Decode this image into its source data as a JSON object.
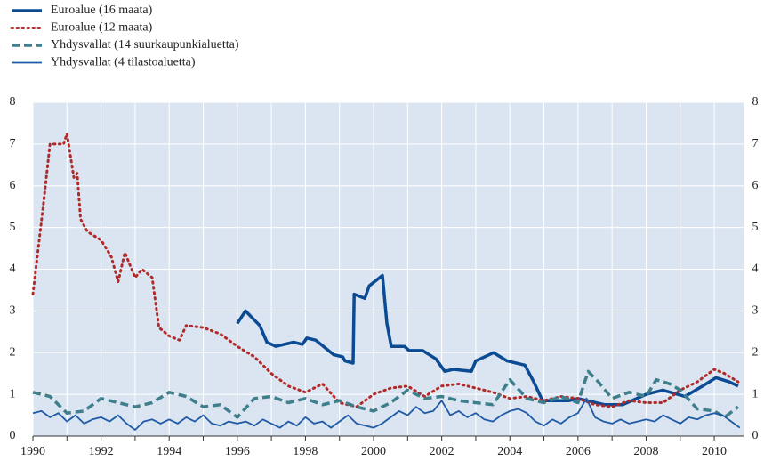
{
  "chart_data": {
    "type": "line",
    "xlim": [
      1990,
      2010.86
    ],
    "xticks": [
      1990,
      1992,
      1994,
      1996,
      1998,
      2000,
      2002,
      2004,
      2006,
      2008,
      2010
    ],
    "xminorticks": [
      1991,
      1993,
      1995,
      1997,
      1999,
      2001,
      2003,
      2005,
      2007,
      2009
    ],
    "ylim": [
      0,
      8
    ],
    "yticks": [
      0,
      1,
      2,
      3,
      4,
      5,
      6,
      7,
      8
    ],
    "y2lim": [
      0,
      8
    ],
    "y2ticks": [
      0,
      1,
      2,
      3,
      4,
      5,
      6,
      7,
      8
    ],
    "grid": true,
    "plot_background": "#dbe5f1",
    "grid_color": "#ffffff",
    "series": [
      {
        "name": "Euroalue (16 maata)",
        "color": "#0b4b93",
        "style": "solid",
        "width": 3.5,
        "x": [
          1996.0,
          1996.24,
          1996.66,
          1996.87,
          1997.13,
          1997.65,
          1997.91,
          1998.04,
          1998.3,
          1998.83,
          1999.09,
          1999.16,
          1999.4,
          1999.43,
          1999.74,
          1999.87,
          2000.26,
          2000.39,
          2000.52,
          2000.91,
          2001.04,
          2001.44,
          2001.83,
          2002.09,
          2002.35,
          2002.87,
          2003.0,
          2003.52,
          2003.92,
          2004.44,
          2004.7,
          2004.96,
          2005.74,
          2006.0,
          2006.79,
          2007.31,
          2008.0,
          2008.49,
          2009.14,
          2009.66,
          2010.05,
          2010.44,
          2010.7
        ],
        "values": [
          2.7,
          3.0,
          2.65,
          2.25,
          2.15,
          2.25,
          2.2,
          2.35,
          2.3,
          1.95,
          1.9,
          1.8,
          1.75,
          3.4,
          3.3,
          3.6,
          3.85,
          2.7,
          2.15,
          2.15,
          2.05,
          2.05,
          1.85,
          1.55,
          1.6,
          1.55,
          1.8,
          2.0,
          1.8,
          1.7,
          1.3,
          0.85,
          0.85,
          0.9,
          0.75,
          0.75,
          1.0,
          1.1,
          0.95,
          1.2,
          1.4,
          1.3,
          1.2
        ]
      },
      {
        "name": "Euroalue (12 maata)",
        "color": "#b02a2a",
        "style": "dotted",
        "width": 3,
        "x": [
          1990.0,
          1990.3,
          1990.5,
          1990.9,
          1991.0,
          1991.2,
          1991.3,
          1991.4,
          1991.6,
          1992.0,
          1992.3,
          1992.5,
          1992.7,
          1993.0,
          1993.2,
          1993.5,
          1993.7,
          1994.0,
          1994.3,
          1994.5,
          1995.0,
          1995.5,
          1996.0,
          1996.5,
          1997.0,
          1997.5,
          1998.0,
          1998.5,
          1999.0,
          1999.5,
          2000.0,
          2000.5,
          2001.0,
          2001.5,
          2002.0,
          2002.5,
          2003.0,
          2003.5,
          2004.0,
          2004.5,
          2005.0,
          2005.5,
          2006.0,
          2006.5,
          2007.0,
          2007.5,
          2008.0,
          2008.5,
          2009.0,
          2009.5,
          2010.0,
          2010.3,
          2010.7
        ],
        "values": [
          3.4,
          5.5,
          7.0,
          7.0,
          7.25,
          6.2,
          6.3,
          5.2,
          4.9,
          4.7,
          4.3,
          3.7,
          4.4,
          3.8,
          4.0,
          3.8,
          2.6,
          2.4,
          2.3,
          2.65,
          2.6,
          2.45,
          2.15,
          1.9,
          1.5,
          1.2,
          1.05,
          1.25,
          0.8,
          0.7,
          1.0,
          1.15,
          1.2,
          0.95,
          1.2,
          1.25,
          1.15,
          1.05,
          0.9,
          0.95,
          0.85,
          0.95,
          0.9,
          0.75,
          0.7,
          0.85,
          0.8,
          0.8,
          1.1,
          1.3,
          1.6,
          1.5,
          1.3
        ]
      },
      {
        "name": "Yhdysvallat (14 suurkaupunkialuetta)",
        "color": "#3f7f8c",
        "style": "dashed",
        "width": 3.5,
        "x": [
          1990.0,
          1990.5,
          1991.0,
          1991.5,
          1992.0,
          1992.5,
          1993.0,
          1993.5,
          1994.0,
          1994.5,
          1995.0,
          1995.5,
          1996.0,
          1996.5,
          1997.0,
          1997.5,
          1998.0,
          1998.5,
          1999.0,
          1999.5,
          2000.0,
          2000.5,
          2001.0,
          2001.5,
          2002.0,
          2002.5,
          2003.0,
          2003.5,
          2004.0,
          2004.5,
          2005.0,
          2005.5,
          2006.0,
          2006.3,
          2006.6,
          2007.0,
          2007.5,
          2008.0,
          2008.3,
          2008.7,
          2009.0,
          2009.5,
          2010.0,
          2010.3,
          2010.7
        ],
        "values": [
          1.05,
          0.95,
          0.55,
          0.6,
          0.9,
          0.8,
          0.7,
          0.8,
          1.05,
          0.95,
          0.7,
          0.75,
          0.45,
          0.9,
          0.95,
          0.8,
          0.9,
          0.75,
          0.85,
          0.7,
          0.6,
          0.8,
          1.1,
          0.9,
          0.95,
          0.85,
          0.8,
          0.75,
          1.35,
          0.9,
          0.8,
          0.95,
          0.8,
          1.55,
          1.3,
          0.9,
          1.05,
          0.95,
          1.35,
          1.25,
          1.1,
          0.65,
          0.6,
          0.45,
          0.7
        ]
      },
      {
        "name": "Yhdysvallat (4 tilastoaluetta)",
        "color": "#1f5aa6",
        "style": "solid",
        "width": 1.8,
        "x": [
          1990.0,
          1990.25,
          1990.5,
          1990.75,
          1991.0,
          1991.25,
          1991.5,
          1991.75,
          1992.0,
          1992.25,
          1992.5,
          1992.75,
          1993.0,
          1993.25,
          1993.5,
          1993.75,
          1994.0,
          1994.25,
          1994.5,
          1994.75,
          1995.0,
          1995.25,
          1995.5,
          1995.75,
          1996.0,
          1996.25,
          1996.5,
          1996.75,
          1997.0,
          1997.25,
          1997.5,
          1997.75,
          1998.0,
          1998.25,
          1998.5,
          1998.75,
          1999.0,
          1999.25,
          1999.5,
          1999.75,
          2000.0,
          2000.25,
          2000.5,
          2000.75,
          2001.0,
          2001.25,
          2001.5,
          2001.75,
          2002.0,
          2002.25,
          2002.5,
          2002.75,
          2003.0,
          2003.25,
          2003.5,
          2003.75,
          2004.0,
          2004.25,
          2004.5,
          2004.75,
          2005.0,
          2005.25,
          2005.5,
          2005.75,
          2006.0,
          2006.25,
          2006.5,
          2006.75,
          2007.0,
          2007.25,
          2007.5,
          2007.75,
          2008.0,
          2008.25,
          2008.5,
          2008.75,
          2009.0,
          2009.25,
          2009.5,
          2009.75,
          2010.0,
          2010.25,
          2010.5,
          2010.75
        ],
        "values": [
          0.55,
          0.6,
          0.45,
          0.55,
          0.35,
          0.5,
          0.3,
          0.4,
          0.45,
          0.35,
          0.5,
          0.3,
          0.15,
          0.35,
          0.4,
          0.3,
          0.4,
          0.3,
          0.45,
          0.35,
          0.5,
          0.3,
          0.25,
          0.35,
          0.3,
          0.35,
          0.25,
          0.4,
          0.3,
          0.2,
          0.35,
          0.25,
          0.45,
          0.3,
          0.35,
          0.2,
          0.35,
          0.5,
          0.3,
          0.25,
          0.2,
          0.3,
          0.45,
          0.6,
          0.5,
          0.7,
          0.55,
          0.6,
          0.85,
          0.5,
          0.6,
          0.45,
          0.55,
          0.4,
          0.35,
          0.5,
          0.6,
          0.65,
          0.55,
          0.35,
          0.25,
          0.4,
          0.3,
          0.45,
          0.55,
          0.9,
          0.45,
          0.35,
          0.3,
          0.4,
          0.3,
          0.35,
          0.4,
          0.35,
          0.5,
          0.4,
          0.3,
          0.45,
          0.4,
          0.5,
          0.55,
          0.5,
          0.35,
          0.2
        ]
      }
    ]
  }
}
